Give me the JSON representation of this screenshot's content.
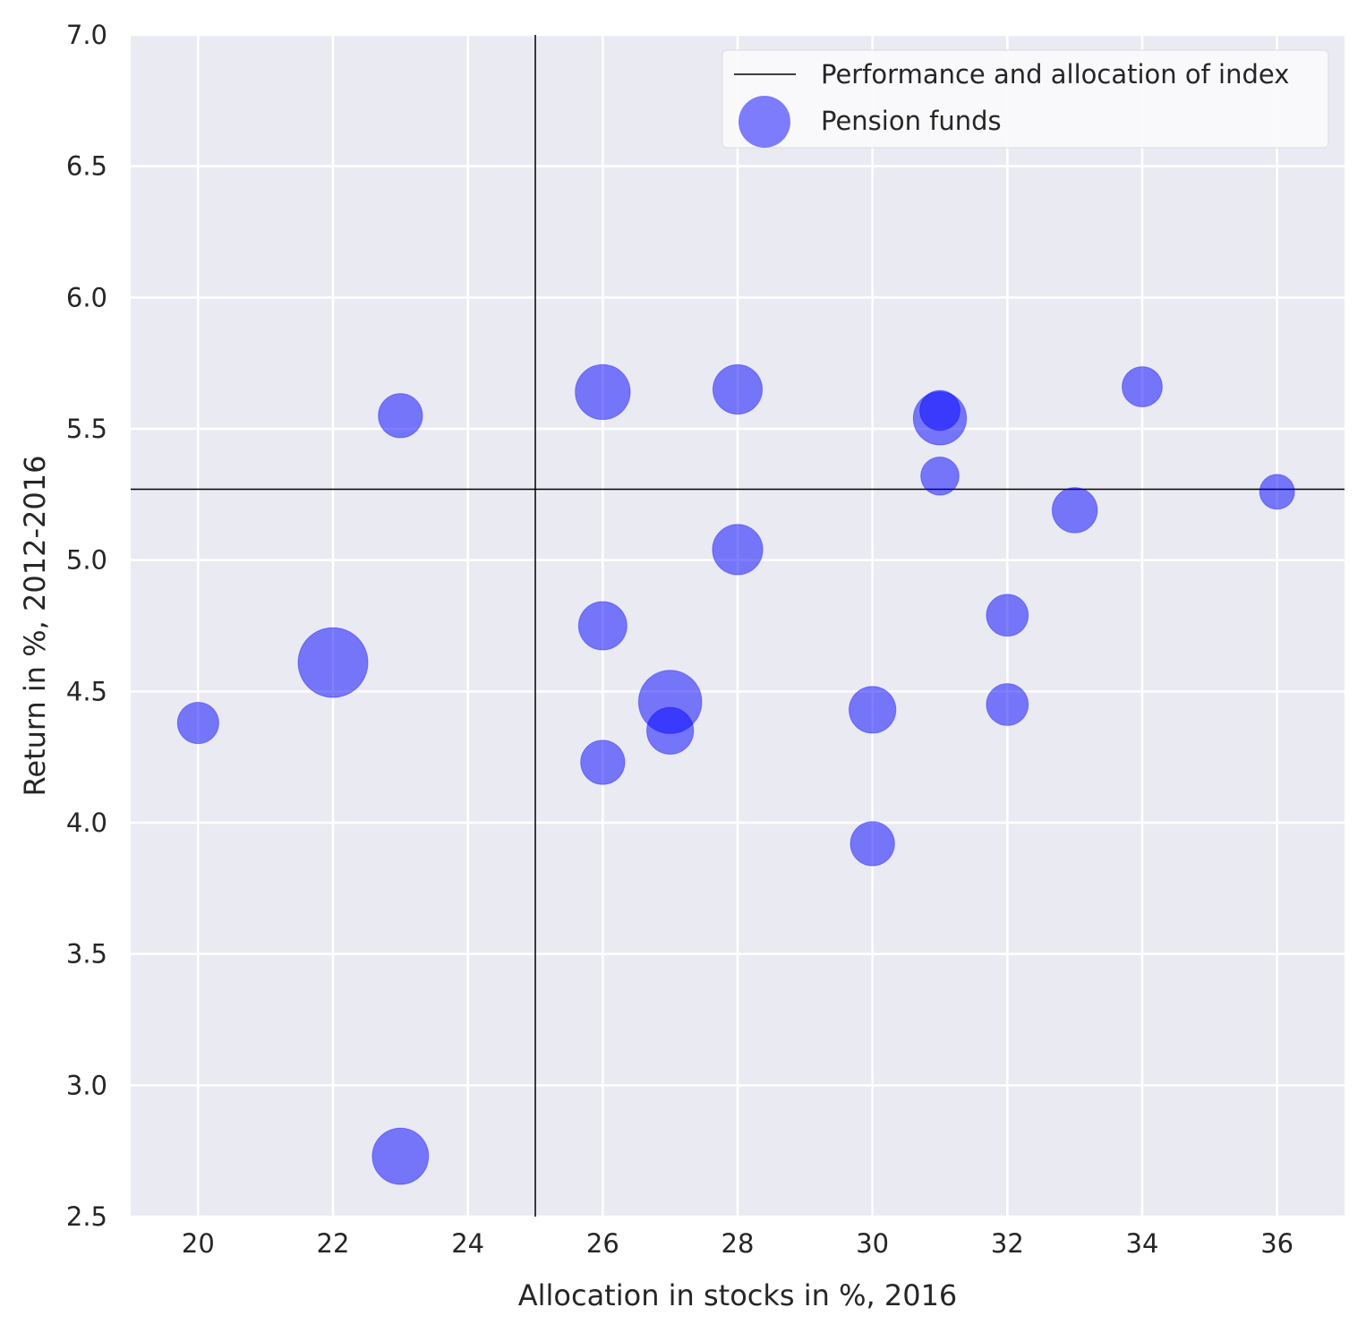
{
  "chart_data": {
    "type": "scatter",
    "xlabel": "Allocation in stocks in %, 2016",
    "ylabel": "Return in %, 2012-2016",
    "xlim": [
      19,
      37
    ],
    "ylim": [
      2.5,
      7.0
    ],
    "xticks": [
      "20",
      "22",
      "24",
      "26",
      "28",
      "30",
      "32",
      "34",
      "36"
    ],
    "yticks": [
      "2.5",
      "3.0",
      "3.5",
      "4.0",
      "4.5",
      "5.0",
      "5.5",
      "6.0",
      "6.5",
      "7.0"
    ],
    "grid": true,
    "legend_position": "top-right",
    "colors": {
      "background": "#eaeaf2",
      "grid": "#ffffff",
      "points": "#0000ff",
      "reference_lines": "#000000"
    },
    "reference_lines": {
      "label": "Performance and allocation of index",
      "x": 25.0,
      "y": 5.27
    },
    "series": [
      {
        "name": "Pension funds",
        "points": [
          {
            "x": 20,
            "y": 4.38,
            "size": 0.35
          },
          {
            "x": 22,
            "y": 4.61,
            "size": 1.0
          },
          {
            "x": 23,
            "y": 5.55,
            "size": 0.4
          },
          {
            "x": 23,
            "y": 2.73,
            "size": 0.65
          },
          {
            "x": 26,
            "y": 5.64,
            "size": 0.62
          },
          {
            "x": 26,
            "y": 4.75,
            "size": 0.48
          },
          {
            "x": 26,
            "y": 4.23,
            "size": 0.4
          },
          {
            "x": 27,
            "y": 4.46,
            "size": 0.82
          },
          {
            "x": 27,
            "y": 4.35,
            "size": 0.45
          },
          {
            "x": 28,
            "y": 5.65,
            "size": 0.5
          },
          {
            "x": 28,
            "y": 5.04,
            "size": 0.52
          },
          {
            "x": 30,
            "y": 4.43,
            "size": 0.45
          },
          {
            "x": 30,
            "y": 3.92,
            "size": 0.4
          },
          {
            "x": 31,
            "y": 5.54,
            "size": 0.58
          },
          {
            "x": 31,
            "y": 5.57,
            "size": 0.33
          },
          {
            "x": 31,
            "y": 5.32,
            "size": 0.3
          },
          {
            "x": 32,
            "y": 4.79,
            "size": 0.36
          },
          {
            "x": 32,
            "y": 4.45,
            "size": 0.36
          },
          {
            "x": 33,
            "y": 5.19,
            "size": 0.42
          },
          {
            "x": 34,
            "y": 5.66,
            "size": 0.33
          },
          {
            "x": 36,
            "y": 5.26,
            "size": 0.25
          }
        ]
      }
    ]
  }
}
